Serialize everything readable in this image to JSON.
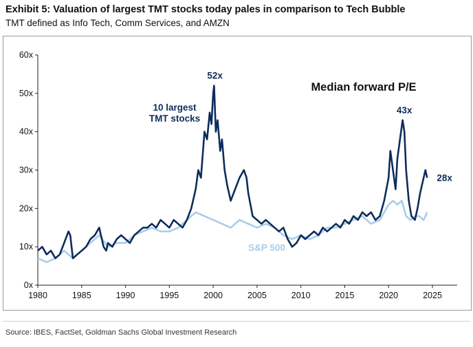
{
  "header": {
    "title": "Exhibit 5: Valuation of largest TMT stocks today pales in comparison to Tech Bubble",
    "subtitle": "TMT defined as Info Tech, Comm Services, and AMZN"
  },
  "footer": {
    "source": "Source: IBES, FactSet, Goldman Sachs Global Investment Research"
  },
  "chart_data": {
    "type": "line",
    "inner_title": "Median forward P/E",
    "x_ticks": [
      "1980",
      "1985",
      "1990",
      "1995",
      "2000",
      "2005",
      "2010",
      "2015",
      "2020",
      "2025"
    ],
    "y_ticks": [
      "0x",
      "10x",
      "20x",
      "30x",
      "40x",
      "50x",
      "60x"
    ],
    "xlim": [
      1980,
      2027
    ],
    "ylim": [
      0,
      60
    ],
    "grid": false,
    "series": [
      {
        "name": "10 largest TMT stocks",
        "label": "10 largest\nTMT stocks",
        "color": "#0c2d5c",
        "x": [
          1980,
          1980.5,
          1981,
          1981.5,
          1982,
          1982.5,
          1983,
          1983.5,
          1983.7,
          1984,
          1984.5,
          1985,
          1985.5,
          1986,
          1986.5,
          1987,
          1987.5,
          1987.8,
          1988,
          1988.5,
          1989,
          1989.5,
          1990,
          1990.5,
          1991,
          1991.5,
          1992,
          1992.5,
          1993,
          1993.5,
          1994,
          1994.5,
          1995,
          1995.5,
          1996,
          1996.5,
          1997,
          1997.5,
          1998,
          1998.3,
          1998.6,
          1999,
          1999.3,
          1999.6,
          1999.8,
          2000,
          2000.1,
          2000.3,
          2000.5,
          2000.8,
          2001,
          2001.3,
          2001.6,
          2002,
          2002.5,
          2003,
          2003.5,
          2003.8,
          2004,
          2004.5,
          2005,
          2005.5,
          2006,
          2006.5,
          2007,
          2007.5,
          2008,
          2008.5,
          2009,
          2009.5,
          2010,
          2010.5,
          2011,
          2011.5,
          2012,
          2012.5,
          2013,
          2013.5,
          2014,
          2014.5,
          2015,
          2015.5,
          2016,
          2016.5,
          2017,
          2017.5,
          2018,
          2018.5,
          2019,
          2019.5,
          2020,
          2020.2,
          2020.5,
          2020.8,
          2021,
          2021.3,
          2021.6,
          2021.8,
          2022,
          2022.3,
          2022.6,
          2023,
          2023.3,
          2023.6,
          2024,
          2024.2,
          2024.4
        ],
        "values": [
          9,
          10,
          8,
          9,
          7,
          8,
          11,
          14,
          13,
          7,
          8,
          9,
          10,
          12,
          13,
          15,
          10,
          9,
          11,
          10,
          12,
          13,
          12,
          11,
          13,
          14,
          15,
          15,
          16,
          15,
          17,
          16,
          15,
          17,
          16,
          15,
          17,
          20,
          25,
          30,
          28,
          40,
          38,
          45,
          42,
          50,
          52,
          40,
          43,
          35,
          38,
          30,
          26,
          22,
          25,
          28,
          30,
          28,
          24,
          18,
          17,
          16,
          17,
          16,
          15,
          14,
          15,
          12,
          10,
          11,
          13,
          12,
          13,
          14,
          13,
          15,
          14,
          15,
          16,
          15,
          17,
          16,
          18,
          17,
          19,
          18,
          19,
          17,
          18,
          22,
          28,
          35,
          30,
          25,
          33,
          38,
          43,
          40,
          30,
          22,
          18,
          17,
          20,
          24,
          28,
          30,
          28
        ]
      },
      {
        "name": "S&P 500",
        "label": "S&P 500",
        "color": "#a9cdea",
        "x": [
          1980,
          1981,
          1982,
          1983,
          1984,
          1985,
          1986,
          1987,
          1988,
          1989,
          1990,
          1991,
          1992,
          1993,
          1994,
          1995,
          1996,
          1997,
          1998,
          1999,
          2000,
          2001,
          2002,
          2003,
          2004,
          2005,
          2006,
          2007,
          2008,
          2009,
          2010,
          2011,
          2012,
          2013,
          2014,
          2015,
          2016,
          2017,
          2018,
          2019,
          2020,
          2020.5,
          2021,
          2021.5,
          2022,
          2022.5,
          2023,
          2023.5,
          2024,
          2024.4
        ],
        "values": [
          7,
          6,
          7,
          9,
          7,
          9,
          11,
          13,
          10,
          11,
          11,
          13,
          14,
          15,
          14,
          14,
          15,
          17,
          19,
          18,
          17,
          16,
          15,
          17,
          16,
          15,
          16,
          15,
          13,
          12,
          13,
          12,
          13,
          15,
          15,
          16,
          17,
          18,
          16,
          17,
          21,
          22,
          21,
          22,
          18,
          17,
          18,
          18,
          17,
          19
        ]
      }
    ],
    "annotations": [
      {
        "text": "52x",
        "x": 2000.2,
        "y": 52,
        "color": "#0c2d5c"
      },
      {
        "text": "43x",
        "x": 2021.8,
        "y": 43,
        "color": "#0c2d5c"
      },
      {
        "text": "28x",
        "x": 2024.4,
        "y": 28,
        "color": "#0c2d5c"
      }
    ]
  }
}
